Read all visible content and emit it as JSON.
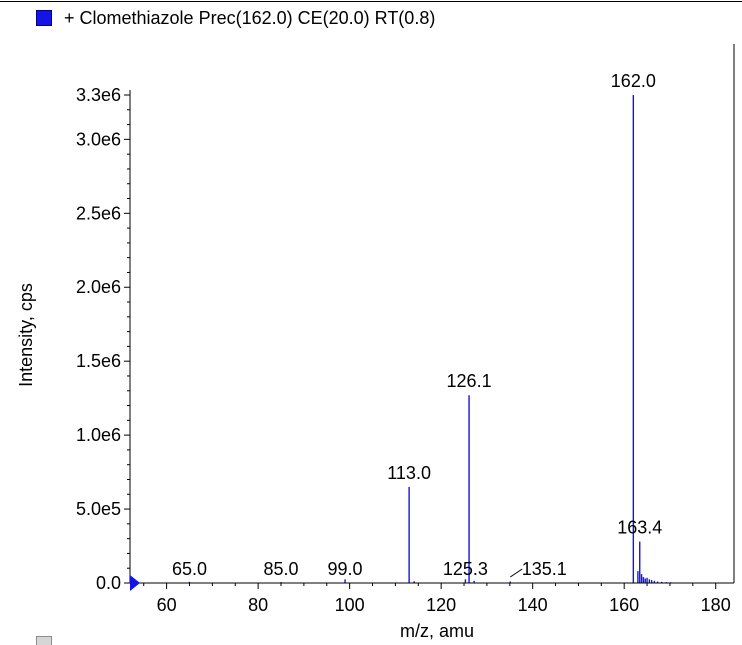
{
  "legend": {
    "label": "+ Clomethiazole Prec(162.0) CE(20.0) RT(0.8)",
    "color": "#1414e6"
  },
  "chart_data": {
    "type": "bar",
    "title": "",
    "xlabel": "m/z, amu",
    "ylabel": "Intensity, cps",
    "xlim": [
      52,
      184
    ],
    "ylim": [
      0,
      3300000
    ],
    "x_ticks": [
      60,
      80,
      100,
      120,
      140,
      160,
      180
    ],
    "x_tick_labels": [
      "60",
      "80",
      "100",
      "120",
      "140",
      "160",
      "180"
    ],
    "y_ticks": [
      0,
      500000,
      1000000,
      1500000,
      2000000,
      2500000,
      3000000,
      3300000
    ],
    "y_tick_labels": [
      "0.0",
      "5.0e5",
      "1.0e6",
      "1.5e6",
      "2.0e6",
      "2.5e6",
      "3.0e6",
      "3.3e6"
    ],
    "bar_color": "#1414e6",
    "peaks": [
      {
        "x": 65.0,
        "y": 8000,
        "label": "65.0"
      },
      {
        "x": 85.0,
        "y": 6000,
        "label": "85.0"
      },
      {
        "x": 99.0,
        "y": 25000,
        "label": "99.0"
      },
      {
        "x": 113.0,
        "y": 650000,
        "label": "113.0"
      },
      {
        "x": 125.3,
        "y": 25000,
        "label": "125.3"
      },
      {
        "x": 126.1,
        "y": 1270000,
        "label": "126.1"
      },
      {
        "x": 127.2,
        "y": 15000
      },
      {
        "x": 114.1,
        "y": 12000
      },
      {
        "x": 135.1,
        "y": 10000,
        "label": "135.1"
      },
      {
        "x": 162.0,
        "y": 3300000,
        "label": "162.0"
      },
      {
        "x": 163.0,
        "y": 80000
      },
      {
        "x": 163.4,
        "y": 280000,
        "label": "163.4"
      },
      {
        "x": 163.8,
        "y": 60000
      },
      {
        "x": 164.2,
        "y": 40000
      },
      {
        "x": 164.6,
        "y": 30000
      },
      {
        "x": 165.0,
        "y": 35000
      },
      {
        "x": 165.5,
        "y": 25000
      },
      {
        "x": 166.0,
        "y": 20000
      },
      {
        "x": 166.6,
        "y": 15000
      },
      {
        "x": 167.3,
        "y": 10000
      },
      {
        "x": 168.2,
        "y": 8000
      },
      {
        "x": 169.2,
        "y": 6000
      },
      {
        "x": 170.2,
        "y": 5000
      }
    ]
  }
}
